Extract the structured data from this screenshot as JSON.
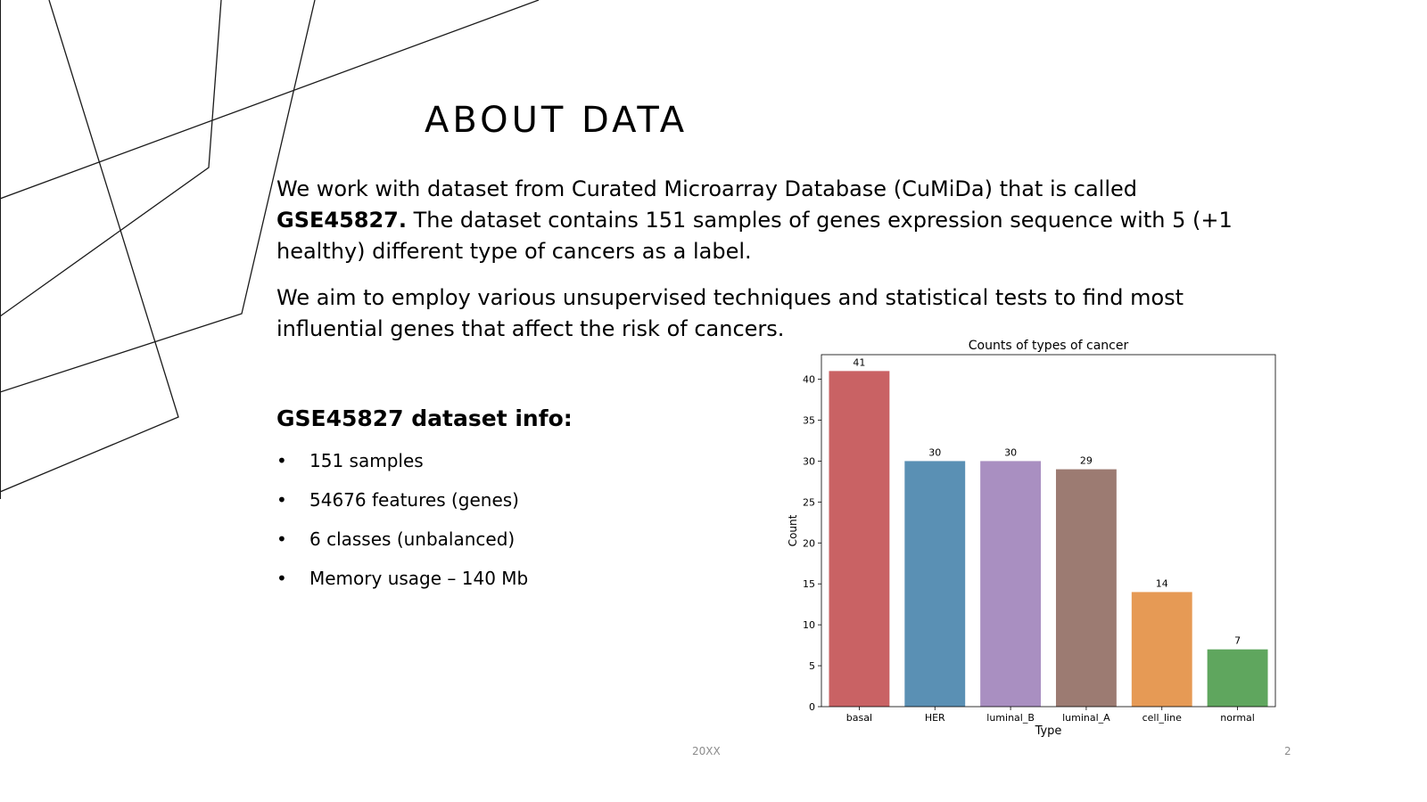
{
  "slide": {
    "title": "ABOUT DATA",
    "paragraph1": {
      "lead": "We work with dataset from Curated Microarray Database (CuMiDa) that is called ",
      "bold": "GSE45827.",
      "rest": " The dataset contains 151 samples of genes expression sequence with 5 (+1 healthy) different type of cancers as a label."
    },
    "paragraph2": "We aim to employ various unsupervised techniques and statistical tests to find most influential genes that affect the risk of cancers.",
    "info_heading": {
      "bold": "GSE45827",
      "rest": " dataset info:"
    },
    "info_items": [
      "151 samples",
      "54676 features (genes)",
      "6 classes (unbalanced)",
      "Memory usage – 140 Mb"
    ],
    "bullet_char": "•",
    "footer_year": "20XX",
    "page_number": "2"
  },
  "chart_data": {
    "type": "bar",
    "title": "Counts of types of cancer",
    "xlabel": "Type",
    "ylabel": "Count",
    "categories": [
      "basal",
      "HER",
      "luminal_B",
      "luminal_A",
      "cell_line",
      "normal"
    ],
    "values": [
      41,
      30,
      30,
      29,
      14,
      7
    ],
    "colors": [
      "#c96264",
      "#5a90b4",
      "#a98fc1",
      "#9c7b72",
      "#e69a55",
      "#5fa65e"
    ],
    "ylim": [
      0,
      43
    ],
    "yticks": [
      0,
      5,
      10,
      15,
      20,
      25,
      30,
      35,
      40
    ],
    "data_labels": true,
    "grid": false
  }
}
